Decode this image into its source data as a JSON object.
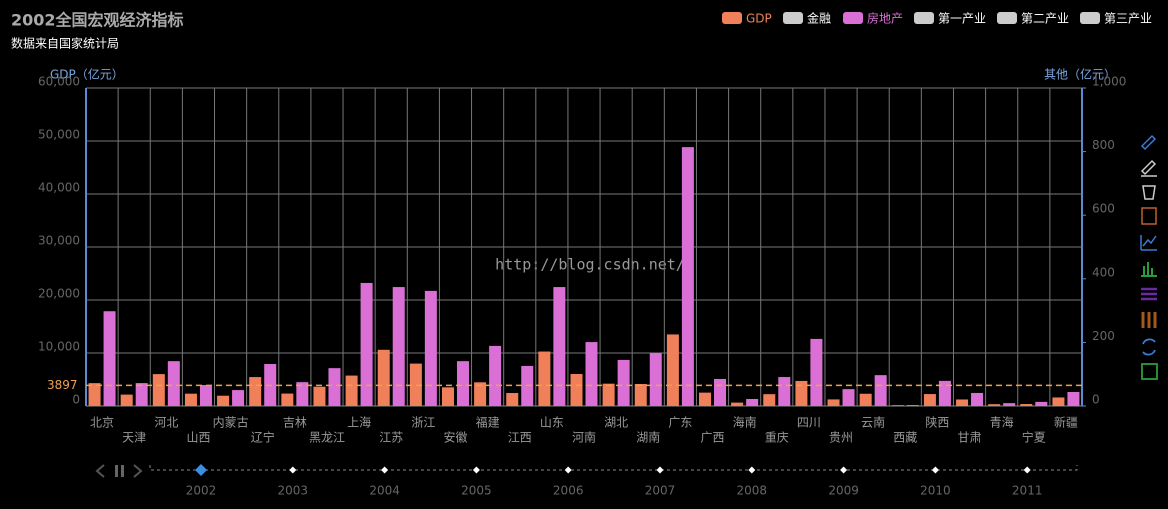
{
  "chart_data": {
    "type": "bar",
    "title": "2002全国宏观经济指标",
    "subtitle": "数据来自国家统计局",
    "watermark": "http://blog.csdn.net/",
    "y_label": "GDP（亿元）",
    "y2_label": "其他（亿元）",
    "categories": [
      "北京",
      "天津",
      "河北",
      "山西",
      "内蒙古",
      "辽宁",
      "吉林",
      "黑龙江",
      "上海",
      "江苏",
      "浙江",
      "安徽",
      "福建",
      "江西",
      "山东",
      "河南",
      "湖北",
      "湖南",
      "广东",
      "广西",
      "海南",
      "重庆",
      "四川",
      "贵州",
      "云南",
      "西藏",
      "陕西",
      "甘肃",
      "青海",
      "宁夏",
      "新疆"
    ],
    "series": [
      {
        "name": "GDP",
        "color": "#f0805a",
        "selected": true,
        "values": [
          4315,
          2150.76,
          6018.28,
          2324.8,
          1940.94,
          5458.22,
          2348.54,
          3637.2,
          5741.03,
          10606.85,
          8003.67,
          3519.72,
          4467.55,
          2450.48,
          10275.5,
          6035.48,
          4212.82,
          4151.54,
          13502.42,
          2523.73,
          642.73,
          2232.86,
          4725.01,
          1243.43,
          2312.82,
          162.04,
          2253.39,
          1232.03,
          340.65,
          377.16,
          1612.6
        ]
      },
      {
        "name": "金融",
        "color": "#cccccc",
        "selected": false
      },
      {
        "name": "房地产",
        "color": "#da70d6",
        "selected": true,
        "axis": "y2",
        "values": [
          298,
          72,
          141,
          66,
          50,
          132,
          75,
          119,
          387,
          374,
          362,
          141,
          189,
          126,
          374,
          201,
          145,
          167,
          814,
          85,
          22,
          91,
          211,
          53,
          97,
          3,
          79,
          41,
          9,
          13,
          44
        ]
      },
      {
        "name": "第一产业",
        "color": "#cccccc",
        "selected": false
      },
      {
        "name": "第二产业",
        "color": "#cccccc",
        "selected": false
      },
      {
        "name": "第三产业",
        "color": "#cccccc",
        "selected": false
      }
    ],
    "mark_line": {
      "value": 3897,
      "color": "#f0a050"
    },
    "ylim": [
      0,
      60000
    ],
    "yticks": [
      0,
      {
        "value": 10000,
        "label": "10,000"
      },
      {
        "value": 20000,
        "label": "20,000"
      },
      {
        "value": 30000,
        "label": "30,000"
      },
      {
        "value": 40000,
        "label": "40,000"
      },
      {
        "value": 50000,
        "label": "50,000"
      },
      {
        "value": 60000,
        "label": "60,000"
      }
    ],
    "y2lim": [
      0,
      1000
    ],
    "y2ticks": [
      0,
      200,
      400,
      600,
      800,
      {
        "value": 1000,
        "label": "1,000"
      }
    ],
    "grid": true,
    "timeline": {
      "years": [
        "2002",
        "2003",
        "2004",
        "2005",
        "2006",
        "2007",
        "2008",
        "2009",
        "2010",
        "2011"
      ],
      "current": 0
    }
  }
}
